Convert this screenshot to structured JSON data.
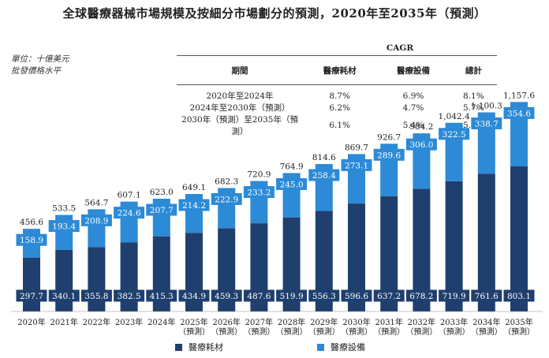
{
  "title": "全球醫療器械市場規模及按細分市場劃分的預測，2020年至2035年（預測）",
  "unit_lines": [
    "單位：十億美元",
    "批發價格水平"
  ],
  "colors": {
    "consumables": "#1f3f6e",
    "equipment": "#2c8ad6"
  },
  "cagr_table": {
    "group_label": "CAGR",
    "headers": [
      "期間",
      "醫療耗材",
      "醫療設備",
      "總計"
    ],
    "rows": [
      [
        "2020年至2024年",
        "8.7%",
        "6.9%",
        "8.1%"
      ],
      [
        "2024年至2030年（預測）",
        "6.2%",
        "4.7%",
        "5.7%"
      ],
      [
        "2030年（預測）至2035年（預測）",
        "6.1%",
        "5.4%",
        "5.9%"
      ]
    ]
  },
  "legend": {
    "consumables": "醫療耗材",
    "equipment": "醫療設備"
  },
  "chart_data": {
    "type": "bar",
    "stacked": true,
    "categories": [
      "2020年",
      "2021年",
      "2022年",
      "2023年",
      "2024年",
      "2025年",
      "2026年",
      "2027年",
      "2028年",
      "2029年",
      "2030年",
      "2031年",
      "2032年",
      "2033年",
      "2034年",
      "2035年"
    ],
    "category_sublabels": [
      "",
      "",
      "",
      "",
      "",
      "（預測）",
      "（預測）",
      "（預測）",
      "（預測）",
      "（預測）",
      "（預測）",
      "（預測）",
      "（預測）",
      "（預測）",
      "（預測）",
      "（預測）"
    ],
    "series": [
      {
        "name": "醫療耗材",
        "values": [
          297.7,
          340.1,
          355.8,
          382.5,
          415.3,
          434.9,
          459.3,
          487.6,
          519.9,
          556.3,
          596.6,
          637.2,
          678.2,
          719.9,
          761.6,
          803.1
        ]
      },
      {
        "name": "醫療設備",
        "values": [
          158.9,
          193.4,
          208.9,
          224.6,
          207.7,
          214.2,
          222.9,
          233.2,
          245.0,
          258.4,
          273.1,
          289.6,
          306.0,
          322.5,
          338.7,
          354.6
        ]
      }
    ],
    "totals": [
      456.6,
      533.5,
      564.7,
      607.1,
      623.0,
      649.1,
      682.3,
      720.9,
      764.9,
      814.6,
      869.7,
      926.7,
      984.2,
      1042.4,
      1100.3,
      1157.6
    ],
    "total_labels": [
      "456.6",
      "533.5",
      "564.7",
      "607.1",
      "623.0",
      "649.1",
      "682.3",
      "720.9",
      "764.9",
      "814.6",
      "869.7",
      "926.7",
      "984.2",
      "1,042.4",
      "1,100.3",
      "1,157.6"
    ],
    "ylim": [
      0,
      1200
    ],
    "axis": {
      "y_visible": false,
      "grid": false
    }
  }
}
